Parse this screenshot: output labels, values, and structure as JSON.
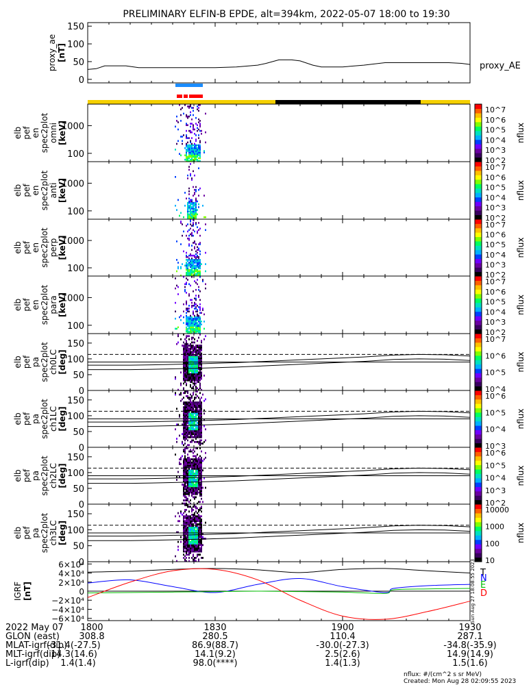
{
  "title": "PRELIMINARY ELFIN-B EPDE, alt=394km, 2022-05-07 18:00 to 19:30",
  "colors": {
    "sci_bar": "#1a8cff",
    "sci_bar_red": "#ff0000",
    "sunlit": "#f5d000",
    "eclipse": "#000000",
    "igrf_T": "#000000",
    "igrf_N": "#0000ff",
    "igrf_E": "#00c000",
    "igrf_D": "#ff0000"
  },
  "colorbar_scale": [
    "#000000",
    "#3a0060",
    "#6a00a0",
    "#7000ff",
    "#0040ff",
    "#00b0ff",
    "#00e0c0",
    "#00ff60",
    "#80ff00",
    "#ffff00",
    "#ffc000",
    "#ff6000",
    "#ff0000"
  ],
  "chart_data": [
    {
      "type": "line",
      "id": "proxy_ae",
      "ylabel": [
        "proxy_ae",
        "[nT]"
      ],
      "ytick_labels": [
        "150",
        "100",
        "50",
        "0"
      ],
      "yticks": [
        150,
        100,
        50,
        0
      ],
      "ylim": [
        -10,
        160
      ],
      "series": [
        {
          "name": "proxy_AE",
          "x": [
            0,
            2,
            4,
            6,
            9,
            12,
            15,
            20,
            25,
            30,
            35,
            40,
            42,
            45,
            48,
            50,
            53,
            55,
            60,
            65,
            70,
            72,
            75,
            80,
            85,
            88,
            90
          ],
          "y": [
            28,
            30,
            38,
            38,
            38,
            33,
            33,
            33,
            33,
            33,
            35,
            40,
            45,
            55,
            55,
            52,
            40,
            35,
            35,
            40,
            47,
            47,
            47,
            47,
            47,
            45,
            42
          ]
        }
      ]
    },
    {
      "type": "heatmap",
      "id": "omni",
      "ylabel": [
        "elb",
        "pef",
        "en",
        "spec2plot",
        "omni",
        "[keV]"
      ],
      "ytick_labels": [
        "1000",
        "100"
      ],
      "yscale": "log",
      "ylim": [
        50,
        6000
      ],
      "cbar": {
        "label": "nflux",
        "ticks": [
          "10^7",
          "10^6",
          "10^5",
          "10^4",
          "10^3",
          "10^2"
        ]
      }
    },
    {
      "type": "heatmap",
      "id": "anti",
      "ylabel": [
        "elb",
        "pef",
        "en",
        "spec2plot",
        "anti",
        "[keV]"
      ],
      "ytick_labels": [
        "1000",
        "100"
      ],
      "yscale": "log",
      "ylim": [
        50,
        6000
      ],
      "cbar": {
        "label": "nflux",
        "ticks": [
          "10^7",
          "10^6",
          "10^5",
          "10^4",
          "10^3",
          "10^2"
        ]
      }
    },
    {
      "type": "heatmap",
      "id": "perp",
      "ylabel": [
        "elb",
        "pef",
        "en",
        "spec2plot",
        "perp",
        "[keV]"
      ],
      "ytick_labels": [
        "1000",
        "100"
      ],
      "yscale": "log",
      "ylim": [
        50,
        6000
      ],
      "cbar": {
        "label": "nflux",
        "ticks": [
          "10^7",
          "10^6",
          "10^5",
          "10^4",
          "10^3",
          "10^2"
        ]
      }
    },
    {
      "type": "heatmap",
      "id": "para",
      "ylabel": [
        "elb",
        "pef",
        "en",
        "spec2plot",
        "para",
        "[keV]"
      ],
      "ytick_labels": [
        "1000",
        "100"
      ],
      "yscale": "log",
      "ylim": [
        50,
        6000
      ],
      "cbar": {
        "label": "nflux",
        "ticks": [
          "10^7",
          "10^6",
          "10^5",
          "10^4",
          "10^3",
          "10^2"
        ]
      }
    },
    {
      "type": "heatmap",
      "id": "ch0LC",
      "ylabel": [
        "elb",
        "pef",
        "pa",
        "spec2plot",
        "ch0LC",
        "[deg]"
      ],
      "ytick_labels": [
        "150",
        "100",
        "50",
        "0"
      ],
      "ylim": [
        0,
        180
      ],
      "cbar": {
        "label": "nflux",
        "ticks": [
          "10^7",
          "10^6",
          "10^5",
          "10^4"
        ]
      }
    },
    {
      "type": "heatmap",
      "id": "ch1LC",
      "ylabel": [
        "elb",
        "pef",
        "pa",
        "spec2plot",
        "ch1LC",
        "[deg]"
      ],
      "ytick_labels": [
        "150",
        "100",
        "50",
        "0"
      ],
      "ylim": [
        0,
        180
      ],
      "cbar": {
        "label": "nflux",
        "ticks": [
          "10^6",
          "10^5",
          "10^4",
          "10^3"
        ]
      }
    },
    {
      "type": "heatmap",
      "id": "ch2LC",
      "ylabel": [
        "elb",
        "pef",
        "pa",
        "spec2plot",
        "ch2LC",
        "[deg]"
      ],
      "ytick_labels": [
        "150",
        "100",
        "50",
        "0"
      ],
      "ylim": [
        0,
        180
      ],
      "cbar": {
        "label": "nflux",
        "ticks": [
          "10^6",
          "10^5",
          "10^4",
          "10^3",
          "10^2"
        ]
      }
    },
    {
      "type": "heatmap",
      "id": "ch3LC",
      "ylabel": [
        "elb",
        "pef",
        "pa",
        "spec2plot",
        "ch3LC",
        "[deg]"
      ],
      "ytick_labels": [
        "150",
        "100",
        "50",
        "0"
      ],
      "ylim": [
        0,
        180
      ],
      "cbar": {
        "label": "nflux",
        "ticks": [
          "10000",
          "1000",
          "100",
          "10"
        ]
      }
    },
    {
      "type": "line",
      "id": "igrf",
      "ylabel": [
        "IGRF",
        "[nT]"
      ],
      "ytick_labels": [
        "6×10⁴",
        "4×10⁴",
        "2×10⁴",
        "0",
        "−2×10⁴",
        "−4×10⁴",
        "−6×10⁴"
      ],
      "ylim": [
        -65000,
        65000
      ],
      "series": [
        {
          "name": "T",
          "x": [
            0,
            10,
            20,
            30,
            40,
            50,
            60,
            70,
            80,
            90
          ],
          "y": [
            42000,
            44000,
            48000,
            50000,
            47000,
            41000,
            48000,
            50000,
            45000,
            40000
          ]
        },
        {
          "name": "N",
          "x": [
            0,
            10,
            20,
            30,
            40,
            50,
            60,
            70,
            72,
            80,
            90
          ],
          "y": [
            18000,
            25000,
            10000,
            -3000,
            15000,
            28000,
            10000,
            -3000,
            6000,
            12000,
            15000
          ]
        },
        {
          "name": "E",
          "x": [
            0,
            10,
            20,
            30,
            40,
            50,
            60,
            70,
            72,
            80,
            90
          ],
          "y": [
            -4000,
            -3000,
            -2000,
            -1000,
            0,
            -1000,
            -2000,
            -5000,
            3000,
            5000,
            6000
          ]
        },
        {
          "name": "D",
          "x": [
            0,
            10,
            20,
            30,
            40,
            50,
            60,
            70,
            80,
            90
          ],
          "y": [
            -14000,
            20000,
            45000,
            48000,
            25000,
            -20000,
            -55000,
            -62000,
            -45000,
            -22000
          ]
        }
      ]
    }
  ],
  "footer": {
    "rows": [
      {
        "label": "2022 May 07",
        "values": [
          "1800",
          "1830",
          "1900",
          "1930"
        ]
      },
      {
        "label": "GLON (east)",
        "values": [
          "308.8",
          "280.5",
          "110.4",
          "287.1"
        ]
      },
      {
        "label": "MLAT-igrf(dip)",
        "values": [
          "-31.4(-27.5)",
          "86.9(88.7)",
          "-30.0(-27.3)",
          "-34.8(-35.9)"
        ]
      },
      {
        "label": "MLT-igrf(dip)",
        "values": [
          "14.3(14.6)",
          "14.1(9.2)",
          "2.5(2.6)",
          "14.9(14.9)"
        ]
      },
      {
        "label": "L-igrf(dip)",
        "values": [
          "1.4(1.4)",
          "98.0(****)",
          "1.4(1.3)",
          "1.5(1.6)"
        ]
      }
    ],
    "nflux_units": "nflux: #/(cm^2 s sr MeV)",
    "created": "Created: Mon Aug 28 02:09:55 2023",
    "side_stamp": "Sun Aug 27 18:08:55 2023"
  },
  "series_labels": {
    "T": "T",
    "N": "N",
    "E": "E",
    "D": "D"
  }
}
